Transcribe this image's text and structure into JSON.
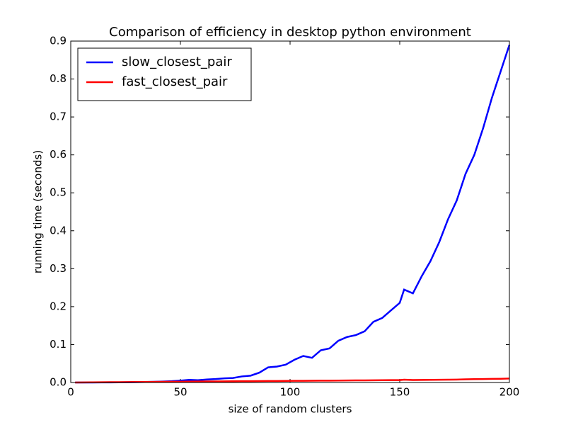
{
  "chart_data": {
    "type": "line",
    "title": "Comparison of efficiency in desktop python environment",
    "x_label": "size of random clusters",
    "y_label": "running time (seconds)",
    "x": [
      2,
      6,
      10,
      14,
      18,
      22,
      26,
      30,
      34,
      38,
      42,
      46,
      50,
      54,
      58,
      62,
      66,
      70,
      74,
      78,
      82,
      86,
      90,
      94,
      98,
      102,
      106,
      110,
      114,
      118,
      122,
      126,
      130,
      134,
      138,
      142,
      146,
      150,
      152,
      156,
      160,
      164,
      168,
      172,
      176,
      180,
      184,
      188,
      192,
      196,
      200
    ],
    "series": [
      {
        "name": "slow_closest_pair",
        "color": "#0000ff",
        "values": [
          0.0,
          0.0,
          0.0001,
          0.0002,
          0.0003,
          0.0005,
          0.0007,
          0.001,
          0.0013,
          0.0018,
          0.0025,
          0.0035,
          0.005,
          0.007,
          0.006,
          0.008,
          0.009,
          0.011,
          0.012,
          0.016,
          0.018,
          0.026,
          0.04,
          0.042,
          0.047,
          0.06,
          0.07,
          0.065,
          0.085,
          0.09,
          0.11,
          0.12,
          0.125,
          0.135,
          0.16,
          0.17,
          0.19,
          0.21,
          0.245,
          0.235,
          0.28,
          0.32,
          0.37,
          0.43,
          0.48,
          0.55,
          0.6,
          0.67,
          0.75,
          0.82,
          0.89
        ]
      },
      {
        "name": "fast_closest_pair",
        "color": "#ff0000",
        "values": [
          0.0,
          0.0003,
          0.0005,
          0.0007,
          0.0009,
          0.001,
          0.0012,
          0.0014,
          0.0015,
          0.0017,
          0.0019,
          0.002,
          0.0022,
          0.0024,
          0.0025,
          0.0027,
          0.0029,
          0.003,
          0.0032,
          0.0034,
          0.0035,
          0.0037,
          0.0039,
          0.004,
          0.0042,
          0.0044,
          0.0045,
          0.0047,
          0.0049,
          0.005,
          0.0052,
          0.0054,
          0.0055,
          0.0057,
          0.0059,
          0.006,
          0.0062,
          0.0064,
          0.0075,
          0.0066,
          0.0068,
          0.007,
          0.0072,
          0.0075,
          0.0078,
          0.0085,
          0.0088,
          0.009,
          0.0095,
          0.0098,
          0.0105
        ]
      }
    ],
    "xlim": [
      0,
      200
    ],
    "xticks": [
      0,
      50,
      100,
      150,
      200
    ],
    "ylim": [
      0,
      0.9
    ],
    "yticks": [
      {
        "value": 0,
        "label": "0.0"
      },
      0.1,
      0.2,
      0.3,
      0.4,
      0.5,
      0.6,
      0.7,
      0.8,
      0.9
    ],
    "legend": "upper left"
  }
}
